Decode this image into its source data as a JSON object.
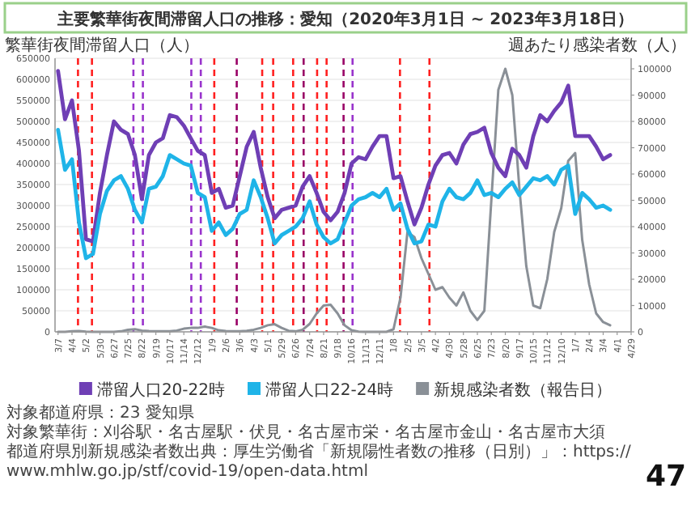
{
  "chart_data": {
    "type": "line",
    "title": "主要繁華街夜間滞留人口の推移：愛知（2020年3月1日 ~ 2023年3月18日）",
    "ylabel": "繁華街夜間滞留人口（人）",
    "y2label": "週あたり感染者数（人）",
    "x": [
      "2020-03-07",
      "2020-03-21",
      "2020-04-04",
      "2020-04-18",
      "2020-05-02",
      "2020-05-16",
      "2020-05-30",
      "2020-06-13",
      "2020-06-27",
      "2020-07-11",
      "2020-07-25",
      "2020-08-08",
      "2020-08-22",
      "2020-09-05",
      "2020-09-19",
      "2020-10-03",
      "2020-10-17",
      "2020-10-31",
      "2020-11-14",
      "2020-11-28",
      "2020-12-12",
      "2020-12-26",
      "2021-01-09",
      "2021-01-23",
      "2021-02-06",
      "2021-02-20",
      "2021-03-06",
      "2021-03-20",
      "2021-04-03",
      "2021-04-17",
      "2021-05-01",
      "2021-05-15",
      "2021-05-29",
      "2021-06-12",
      "2021-06-26",
      "2021-07-10",
      "2021-07-24",
      "2021-08-07",
      "2021-08-21",
      "2021-09-04",
      "2021-09-18",
      "2021-10-02",
      "2021-10-16",
      "2021-10-30",
      "2021-11-13",
      "2021-11-27",
      "2021-12-11",
      "2021-12-25",
      "2022-01-08",
      "2022-01-22",
      "2022-02-05",
      "2022-02-19",
      "2022-03-05",
      "2022-03-19",
      "2022-04-02",
      "2022-04-16",
      "2022-04-30",
      "2022-05-14",
      "2022-05-28",
      "2022-06-11",
      "2022-06-25",
      "2022-07-09",
      "2022-07-23",
      "2022-08-06",
      "2022-08-20",
      "2022-09-03",
      "2022-09-17",
      "2022-10-01",
      "2022-10-15",
      "2022-10-29",
      "2022-11-12",
      "2022-11-26",
      "2022-12-10",
      "2022-12-24",
      "2023-01-07",
      "2023-01-21",
      "2023-02-04",
      "2023-02-18",
      "2023-03-04",
      "2023-03-18"
    ],
    "series": [
      {
        "name": "滞留人口20-22時",
        "color": "#6f3fb5",
        "values": [
          620000,
          505000,
          550000,
          430000,
          220000,
          215000,
          330000,
          420000,
          500000,
          480000,
          470000,
          420000,
          315000,
          420000,
          450000,
          460000,
          515000,
          510000,
          490000,
          460000,
          430000,
          420000,
          330000,
          340000,
          295000,
          300000,
          370000,
          440000,
          475000,
          390000,
          320000,
          270000,
          290000,
          295000,
          300000,
          345000,
          370000,
          330000,
          285000,
          265000,
          285000,
          330000,
          400000,
          415000,
          410000,
          440000,
          465000,
          465000,
          365000,
          370000,
          310000,
          255000,
          295000,
          350000,
          395000,
          420000,
          425000,
          400000,
          445000,
          470000,
          475000,
          485000,
          425000,
          390000,
          370000,
          435000,
          420000,
          390000,
          465000,
          515000,
          500000,
          525000,
          545000,
          585000,
          465000,
          465000,
          465000,
          440000,
          410000,
          420000
        ]
      },
      {
        "name": "滞留人口22-24時",
        "color": "#1fb4e8",
        "values": [
          480000,
          385000,
          410000,
          260000,
          175000,
          185000,
          280000,
          335000,
          360000,
          370000,
          340000,
          290000,
          260000,
          340000,
          345000,
          370000,
          420000,
          410000,
          400000,
          395000,
          330000,
          320000,
          240000,
          260000,
          230000,
          245000,
          280000,
          290000,
          360000,
          320000,
          270000,
          210000,
          230000,
          240000,
          250000,
          270000,
          310000,
          255000,
          225000,
          210000,
          220000,
          260000,
          300000,
          315000,
          320000,
          330000,
          320000,
          340000,
          290000,
          305000,
          245000,
          210000,
          215000,
          255000,
          250000,
          310000,
          340000,
          320000,
          315000,
          330000,
          360000,
          325000,
          330000,
          320000,
          340000,
          355000,
          325000,
          345000,
          365000,
          360000,
          370000,
          350000,
          385000,
          395000,
          280000,
          330000,
          315000,
          295000,
          300000,
          290000
        ]
      },
      {
        "name": "新規感染者数（報告日）",
        "color": "#8a9097",
        "axis": "y2",
        "values": [
          0,
          0,
          200,
          300,
          100,
          0,
          0,
          0,
          0,
          200,
          800,
          1000,
          500,
          300,
          200,
          200,
          200,
          500,
          1200,
          1500,
          1500,
          2000,
          1500,
          600,
          300,
          200,
          200,
          400,
          800,
          1500,
          2500,
          2900,
          1500,
          400,
          200,
          800,
          3000,
          7000,
          10000,
          10300,
          7000,
          2500,
          600,
          100,
          0,
          0,
          0,
          0,
          1000,
          13000,
          38000,
          36000,
          28000,
          22000,
          16000,
          17000,
          13000,
          10000,
          15000,
          8000,
          4500,
          8000,
          50000,
          92000,
          100000,
          90000,
          55000,
          25000,
          10000,
          9000,
          20000,
          38000,
          47000,
          65000,
          68000,
          35000,
          18000,
          7000,
          3700,
          2500
        ]
      }
    ],
    "xlim": [
      "2020-03-01",
      "2023-04-29"
    ],
    "xticks": [
      {
        "value": "2020-03-07",
        "label": "3/7"
      },
      {
        "value": "2020-04-04",
        "label": "4/4"
      },
      {
        "value": "2020-05-02",
        "label": "5/2"
      },
      {
        "value": "2020-05-30",
        "label": "5/30"
      },
      {
        "value": "2020-06-27",
        "label": "6/27"
      },
      {
        "value": "2020-07-25",
        "label": "7/25"
      },
      {
        "value": "2020-08-22",
        "label": "8/22"
      },
      {
        "value": "2020-09-19",
        "label": "9/19"
      },
      {
        "value": "2020-10-17",
        "label": "10/17"
      },
      {
        "value": "2020-11-14",
        "label": "11/14"
      },
      {
        "value": "2020-12-12",
        "label": "12/12"
      },
      {
        "value": "2021-01-09",
        "label": "1/9"
      },
      {
        "value": "2021-02-06",
        "label": "2/6"
      },
      {
        "value": "2021-03-06",
        "label": "3/6"
      },
      {
        "value": "2021-04-03",
        "label": "4/3"
      },
      {
        "value": "2021-05-01",
        "label": "5/1"
      },
      {
        "value": "2021-05-29",
        "label": "5/29"
      },
      {
        "value": "2021-06-26",
        "label": "6/26"
      },
      {
        "value": "2021-07-24",
        "label": "7/24"
      },
      {
        "value": "2021-08-21",
        "label": "8/21"
      },
      {
        "value": "2021-09-18",
        "label": "9/18"
      },
      {
        "value": "2021-10-16",
        "label": "10/16"
      },
      {
        "value": "2021-11-13",
        "label": "11/13"
      },
      {
        "value": "2021-12-11",
        "label": "12/11"
      },
      {
        "value": "2022-01-08",
        "label": "1/8"
      },
      {
        "value": "2022-02-05",
        "label": "2/5"
      },
      {
        "value": "2022-03-05",
        "label": "3/5"
      },
      {
        "value": "2022-04-02",
        "label": "4/2"
      },
      {
        "value": "2022-04-30",
        "label": "4/30"
      },
      {
        "value": "2022-05-28",
        "label": "5/28"
      },
      {
        "value": "2022-06-25",
        "label": "6/25"
      },
      {
        "value": "2022-07-23",
        "label": "7/23"
      },
      {
        "value": "2022-08-20",
        "label": "8/20"
      },
      {
        "value": "2022-09-17",
        "label": "9/17"
      },
      {
        "value": "2022-10-15",
        "label": "10/15"
      },
      {
        "value": "2022-11-12",
        "label": "11/12"
      },
      {
        "value": "2022-12-10",
        "label": "12/10"
      },
      {
        "value": "2023-01-07",
        "label": "1/7"
      },
      {
        "value": "2023-02-04",
        "label": "2/4"
      },
      {
        "value": "2023-03-04",
        "label": "3/4"
      },
      {
        "value": "2023-04-01",
        "label": "4/1"
      },
      {
        "value": "2023-04-29",
        "label": "4/29"
      }
    ],
    "ylim": [
      0,
      650000
    ],
    "yticks": [
      0,
      50000,
      100000,
      150000,
      200000,
      250000,
      300000,
      350000,
      400000,
      450000,
      500000,
      550000,
      600000,
      650000
    ],
    "y2lim": [
      0,
      104000
    ],
    "y2ticks": [
      0,
      10000,
      20000,
      30000,
      40000,
      50000,
      60000,
      70000,
      80000,
      90000,
      100000
    ],
    "ref_lines": [
      {
        "axis": "x",
        "value": "2020-04-16",
        "color": "#ff2020",
        "line_style": "dashed"
      },
      {
        "axis": "x",
        "value": "2020-05-14",
        "color": "#ff2020",
        "line_style": "dashed"
      },
      {
        "axis": "x",
        "value": "2020-08-05",
        "color": "#9933cc",
        "line_style": "dashed"
      },
      {
        "axis": "x",
        "value": "2020-08-24",
        "color": "#9933cc",
        "line_style": "dashed"
      },
      {
        "axis": "x",
        "value": "2020-11-29",
        "color": "#9933cc",
        "line_style": "dashed"
      },
      {
        "axis": "x",
        "value": "2020-12-18",
        "color": "#9933cc",
        "line_style": "dashed"
      },
      {
        "axis": "x",
        "value": "2021-01-14",
        "color": "#ff2020",
        "line_style": "dashed"
      },
      {
        "axis": "x",
        "value": "2021-02-28",
        "color": "#990066",
        "line_style": "dashed"
      },
      {
        "axis": "x",
        "value": "2021-04-20",
        "color": "#ff2020",
        "line_style": "dashed"
      },
      {
        "axis": "x",
        "value": "2021-05-12",
        "color": "#ff2020",
        "line_style": "dashed"
      },
      {
        "axis": "x",
        "value": "2021-06-21",
        "color": "#ff2020",
        "line_style": "dashed"
      },
      {
        "axis": "x",
        "value": "2021-07-12",
        "color": "#990066",
        "line_style": "dashed"
      },
      {
        "axis": "x",
        "value": "2021-08-08",
        "color": "#ff2020",
        "line_style": "dashed"
      },
      {
        "axis": "x",
        "value": "2021-08-27",
        "color": "#ff2020",
        "line_style": "dashed"
      },
      {
        "axis": "x",
        "value": "2021-09-30",
        "color": "#990066",
        "line_style": "dashed"
      },
      {
        "axis": "x",
        "value": "2021-10-18",
        "color": "#9933cc",
        "line_style": "dashed"
      },
      {
        "axis": "x",
        "value": "2022-01-21",
        "color": "#ff2020",
        "line_style": "dashed"
      },
      {
        "axis": "x",
        "value": "2022-03-21",
        "color": "#ff2020",
        "line_style": "dashed"
      }
    ],
    "grid": "y",
    "legend": "bottom",
    "marker": "none",
    "line_style": "solid",
    "annotations": [
      "対象都道府県：23 愛知県",
      "対象繁華街：刈谷駅・名古屋駅・伏見・名古屋市栄・名古屋市金山・名古屋市大須",
      "都道府県別新規感染者数出典：厚生労働省「新規陽性者数の推移（日別）」：https://www.mhlw.go.jp/stf/covid-19/open-data.html",
      "47"
    ]
  }
}
